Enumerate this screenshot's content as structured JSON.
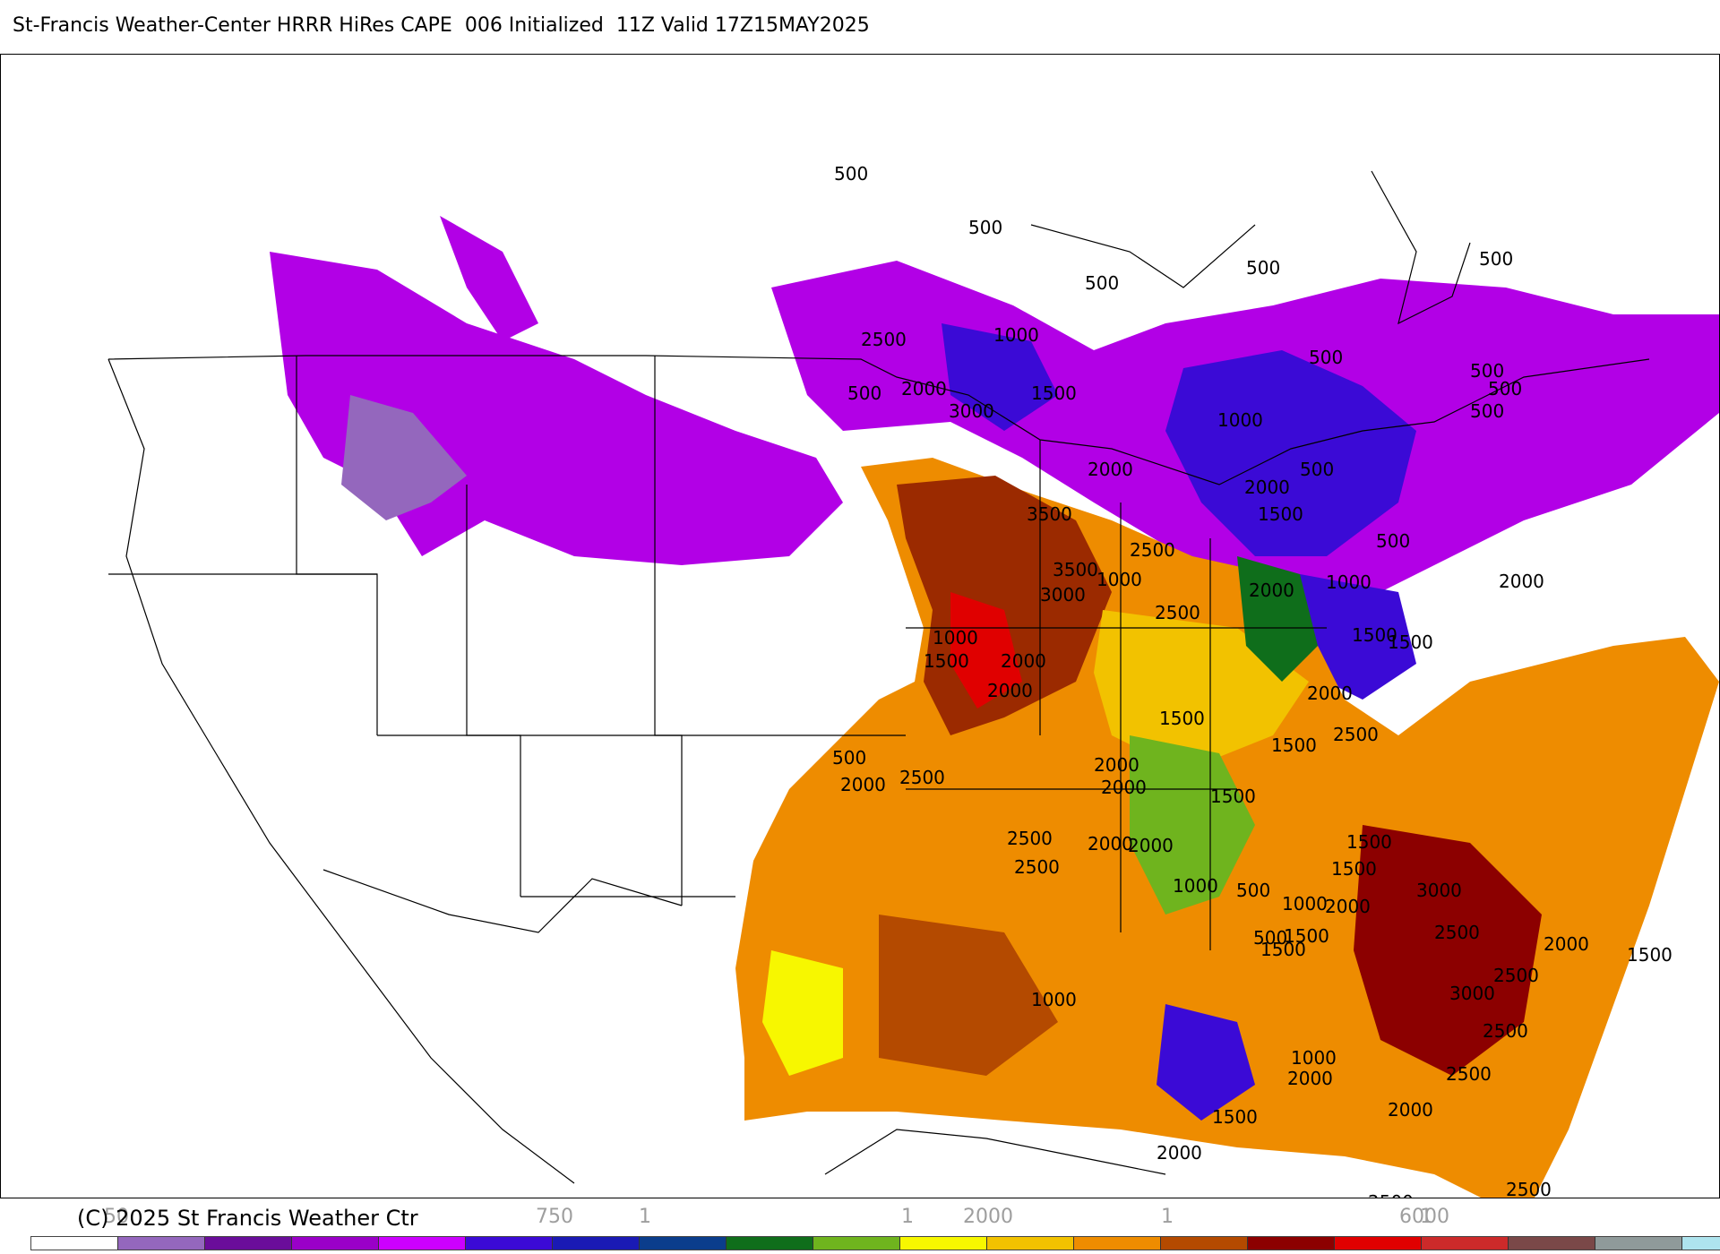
{
  "title": "St-Francis Weather-Center HRRR HiRes CAPE  006 Initialized  11Z Valid 17Z15MAY2025",
  "copyright": "(C) 2025 St Francis Weather Ctr",
  "legend": {
    "tick_labels": [
      "50",
      "750",
      "1",
      "1",
      "2000",
      "1",
      "6000",
      "1"
    ],
    "colors": [
      "#ffffff",
      "#9467bd",
      "#6a0d9a",
      "#9a00c8",
      "#cc00ff",
      "#3b0ad6",
      "#1a1ab4",
      "#0b3d8c",
      "#0f6e1b",
      "#6fb41e",
      "#f7f700",
      "#f2c200",
      "#ee8c00",
      "#b44a00",
      "#8c0000",
      "#e00000",
      "#cc2a2a",
      "#7a4848",
      "#8f9a9a",
      "#aee4ee"
    ]
  },
  "contour_labels": [
    {
      "text": "500"
    },
    {
      "text": "500"
    },
    {
      "text": "500"
    },
    {
      "text": "500"
    },
    {
      "text": "500"
    },
    {
      "text": "2500"
    },
    {
      "text": "500"
    },
    {
      "text": "2000"
    },
    {
      "text": "3000"
    },
    {
      "text": "1000"
    },
    {
      "text": "1500"
    },
    {
      "text": "500"
    },
    {
      "text": "1000"
    },
    {
      "text": "500"
    },
    {
      "text": "500"
    },
    {
      "text": "500"
    },
    {
      "text": "2000"
    },
    {
      "text": "2000"
    },
    {
      "text": "1500"
    },
    {
      "text": "3500"
    },
    {
      "text": "2500"
    },
    {
      "text": "3500"
    },
    {
      "text": "3000"
    },
    {
      "text": "2500"
    },
    {
      "text": "2000"
    },
    {
      "text": "1000"
    },
    {
      "text": "500"
    },
    {
      "text": "500"
    },
    {
      "text": "2000"
    },
    {
      "text": "1000"
    },
    {
      "text": "1500"
    },
    {
      "text": "1000"
    },
    {
      "text": "1500"
    },
    {
      "text": "2000"
    },
    {
      "text": "2000"
    },
    {
      "text": "1500"
    },
    {
      "text": "2000"
    },
    {
      "text": "1500"
    },
    {
      "text": "2000"
    },
    {
      "text": "2500"
    },
    {
      "text": "1500"
    },
    {
      "text": "2000"
    },
    {
      "text": "1500"
    },
    {
      "text": "500"
    },
    {
      "text": "2000"
    },
    {
      "text": "2500"
    },
    {
      "text": "2000"
    },
    {
      "text": "2500"
    },
    {
      "text": "2500"
    },
    {
      "text": "2000"
    },
    {
      "text": "1500"
    },
    {
      "text": "1500"
    },
    {
      "text": "1000"
    },
    {
      "text": "500"
    },
    {
      "text": "1000"
    },
    {
      "text": "2000"
    },
    {
      "text": "3000"
    },
    {
      "text": "1500"
    },
    {
      "text": "2500"
    },
    {
      "text": "1500"
    },
    {
      "text": "2000"
    },
    {
      "text": "1500"
    },
    {
      "text": "500"
    },
    {
      "text": "2500"
    },
    {
      "text": "3000"
    },
    {
      "text": "2500"
    },
    {
      "text": "1000"
    },
    {
      "text": "2500"
    },
    {
      "text": "2000"
    },
    {
      "text": "2000"
    },
    {
      "text": "1000"
    },
    {
      "text": "1500"
    },
    {
      "text": "2000"
    },
    {
      "text": "2500"
    },
    {
      "text": "2500"
    }
  ]
}
